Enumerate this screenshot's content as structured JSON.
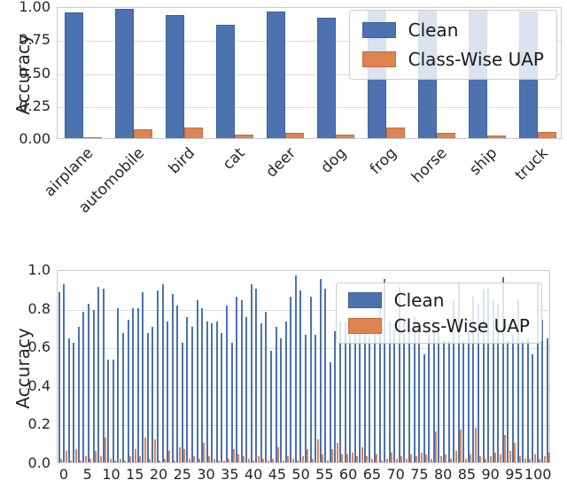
{
  "colors": {
    "clean": "#4C72B0",
    "clean_edge": "#3f628f",
    "uap": "#DD8452",
    "uap_edge": "#c06d3e",
    "grid": "#dcdce2",
    "spine": "#c9c9d2",
    "text": "#262626"
  },
  "legend": {
    "clean_label": "Clean",
    "uap_label": "Class-Wise UAP"
  },
  "chart_data": [
    {
      "type": "bar",
      "title": "",
      "xlabel": "",
      "ylabel": "Accuracy",
      "ylim": [
        0,
        1
      ],
      "grid": true,
      "legend_position": "upper right",
      "yticklabels": [
        "1.00",
        "0.75",
        "0.50",
        "0.25",
        "0.00"
      ],
      "ytick_values": [
        1.0,
        0.75,
        0.5,
        0.25,
        0.0
      ],
      "categories": [
        "airplane",
        "automobile",
        "bird",
        "cat",
        "deer",
        "dog",
        "frog",
        "horse",
        "ship",
        "truck"
      ],
      "series": [
        {
          "name": "Clean",
          "values": [
            0.95,
            0.98,
            0.93,
            0.86,
            0.96,
            0.91,
            0.97,
            0.97,
            0.97,
            0.96
          ]
        },
        {
          "name": "Class-Wise UAP",
          "values": [
            0.01,
            0.07,
            0.08,
            0.03,
            0.04,
            0.03,
            0.08,
            0.04,
            0.02,
            0.05
          ]
        }
      ]
    },
    {
      "type": "bar",
      "title": "",
      "xlabel": "",
      "ylabel": "Accuracy",
      "ylim": [
        0,
        1
      ],
      "grid": true,
      "legend_position": "upper right",
      "yticklabels": [
        "1.0",
        "0.8",
        "0.6",
        "0.4",
        "0.2",
        "0.0"
      ],
      "ytick_values": [
        1.0,
        0.8,
        0.6,
        0.4,
        0.2,
        0.0
      ],
      "xticklabels": [
        "0",
        "5",
        "10",
        "15",
        "20",
        "25",
        "30",
        "35",
        "40",
        "45",
        "50",
        "55",
        "60",
        "65",
        "70",
        "75",
        "80",
        "85",
        "90",
        "95",
        "100"
      ],
      "categories_note": "100 class indices (0-99)",
      "series": [
        {
          "name": "Clean",
          "values": [
            0.88,
            0.92,
            0.64,
            0.62,
            0.7,
            0.78,
            0.82,
            0.79,
            0.91,
            0.9,
            0.53,
            0.53,
            0.8,
            0.67,
            0.74,
            0.8,
            0.8,
            0.88,
            0.67,
            0.7,
            0.89,
            0.92,
            0.73,
            0.87,
            0.81,
            0.62,
            0.75,
            0.7,
            0.84,
            0.8,
            0.73,
            0.72,
            0.73,
            0.67,
            0.81,
            0.62,
            0.86,
            0.84,
            0.75,
            0.92,
            0.9,
            0.72,
            0.78,
            0.58,
            0.7,
            0.64,
            0.73,
            0.86,
            0.97,
            0.89,
            0.66,
            0.86,
            0.66,
            0.95,
            0.9,
            0.52,
            0.68,
            0.73,
            0.73,
            0.72,
            0.73,
            0.7,
            0.73,
            0.65,
            0.72,
            0.87,
            0.95,
            0.73,
            0.69,
            0.91,
            0.73,
            0.71,
            0.75,
            0.71,
            0.56,
            0.7,
            0.69,
            0.68,
            0.63,
            0.63,
            0.84,
            0.93,
            0.63,
            0.68,
            0.86,
            0.82,
            0.89,
            0.9,
            0.84,
            0.82,
            0.96,
            0.63,
            0.66,
            0.84,
            0.63,
            0.64,
            0.56,
            0.92,
            0.74,
            0.64
          ]
        },
        {
          "name": "Class-Wise UAP",
          "values": [
            0.02,
            0.06,
            0.01,
            0.07,
            0.01,
            0.03,
            0.02,
            0.06,
            0.03,
            0.13,
            0.02,
            0.01,
            0.02,
            0.01,
            0.03,
            0.07,
            0.03,
            0.13,
            0.02,
            0.12,
            0.01,
            0.02,
            0.06,
            0.01,
            0.08,
            0.07,
            0.02,
            0.03,
            0.02,
            0.1,
            0.03,
            0.02,
            0.01,
            0.01,
            0.02,
            0.07,
            0.04,
            0.03,
            0.02,
            0.01,
            0.03,
            0.02,
            0.01,
            0.02,
            0.08,
            0.01,
            0.03,
            0.02,
            0.01,
            0.03,
            0.07,
            0.02,
            0.12,
            0.04,
            0.01,
            0.07,
            0.1,
            0.04,
            0.04,
            0.05,
            0.03,
            0.08,
            0.03,
            0.02,
            0.04,
            0.01,
            0.02,
            0.05,
            0.02,
            0.03,
            0.02,
            0.04,
            0.03,
            0.05,
            0.04,
            0.02,
            0.16,
            0.03,
            0.04,
            0.02,
            0.06,
            0.17,
            0.02,
            0.04,
            0.18,
            0.03,
            0.02,
            0.03,
            0.05,
            0.04,
            0.14,
            0.06,
            0.1,
            0.03,
            0.02,
            0.02,
            0.04,
            0.02,
            0.03,
            0.05
          ]
        }
      ]
    }
  ]
}
